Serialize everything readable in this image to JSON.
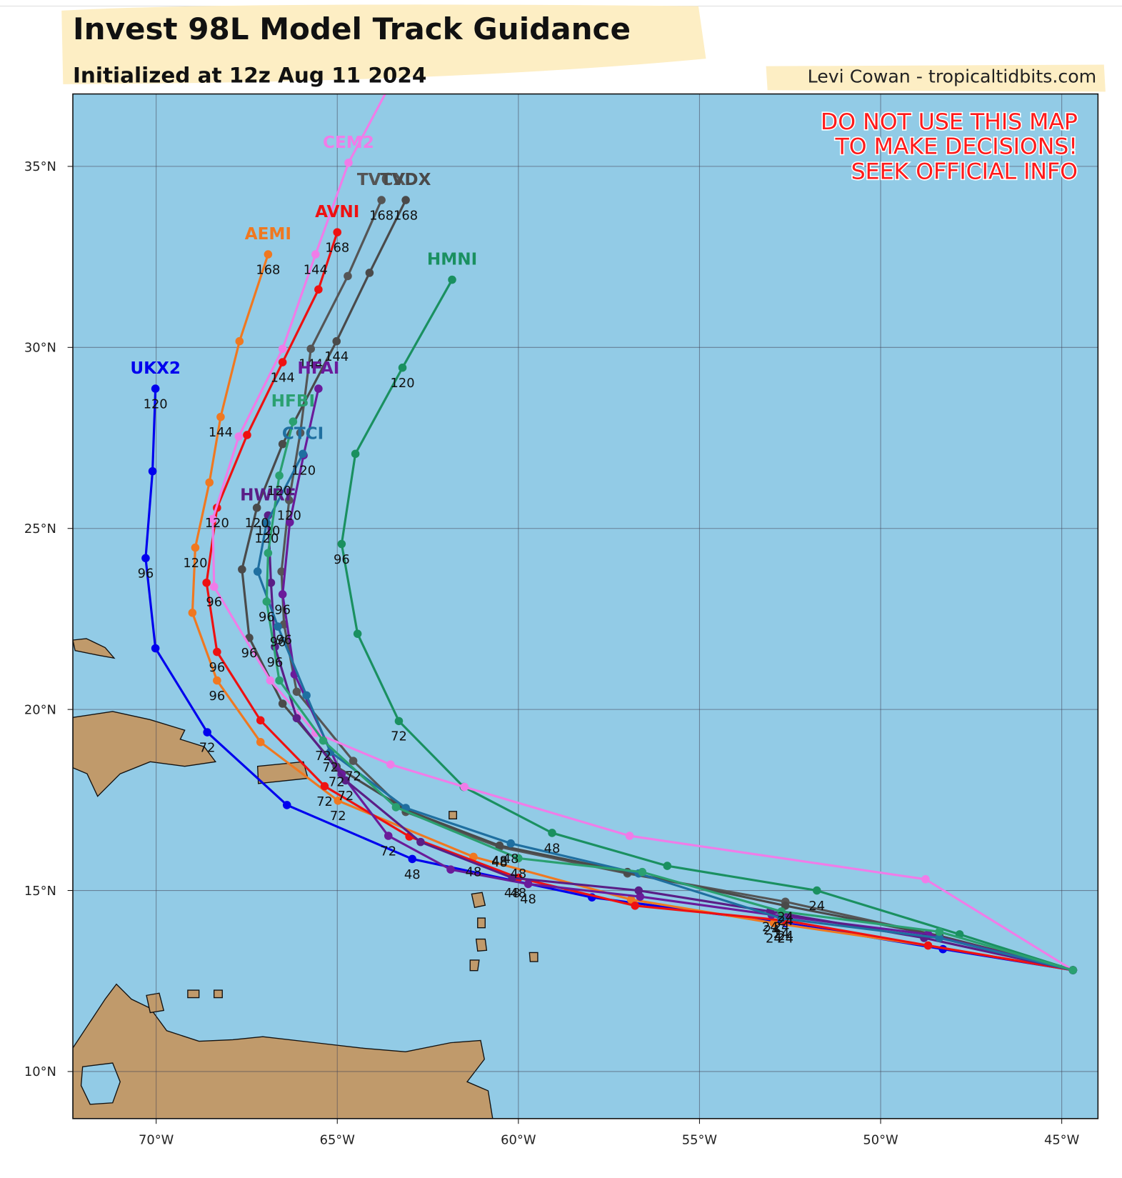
{
  "chart_data": {
    "type": "track",
    "title": "Invest 98L Model Track Guidance",
    "subtitle": "Initialized at 12z Aug 11 2024",
    "credit": "Levi Cowan - tropicaltidbits.com",
    "warning": [
      "DO NOT USE THIS MAP",
      "TO MAKE DECISIONS!",
      "SEEK OFFICIAL INFO"
    ],
    "xlim": [
      -72.3,
      -44.0
    ],
    "ylim": [
      8.7,
      37.0
    ],
    "xticks": [
      {
        "value": -70,
        "label": "70°W"
      },
      {
        "value": -65,
        "label": "65°W"
      },
      {
        "value": -60,
        "label": "60°W"
      },
      {
        "value": -55,
        "label": "55°W"
      },
      {
        "value": -50,
        "label": "50°W"
      },
      {
        "value": -45,
        "label": "45°W"
      }
    ],
    "yticks": [
      {
        "value": 10,
        "label": "10°N"
      },
      {
        "value": 15,
        "label": "15°N"
      },
      {
        "value": 20,
        "label": "20°N"
      },
      {
        "value": 25,
        "label": "25°N"
      },
      {
        "value": 30,
        "label": "30°N"
      },
      {
        "value": 35,
        "label": "35°N"
      }
    ],
    "grid": true,
    "series": [
      {
        "name": "UKX2",
        "color": "#0000ee",
        "x": [
          -44.69,
          -48.28,
          -52.63,
          -57.97,
          -62.93,
          -66.39,
          -68.59,
          -70.02,
          -70.29,
          -70.1,
          -70.02
        ],
        "y": [
          12.8,
          13.38,
          14.1,
          14.81,
          15.87,
          17.36,
          19.37,
          21.69,
          24.18,
          26.58,
          28.86
        ],
        "labels": [
          null,
          null,
          24,
          null,
          48,
          null,
          72,
          null,
          96,
          null,
          120
        ]
      },
      {
        "name": "AEMI",
        "color": "#f07820",
        "x": [
          -44.69,
          -48.69,
          -52.95,
          -56.89,
          -61.24,
          -64.98,
          -67.12,
          -68.32,
          -69.0,
          -68.92,
          -68.53,
          -68.22,
          -67.7,
          -66.91
        ],
        "y": [
          12.8,
          13.48,
          14.1,
          14.75,
          15.93,
          17.48,
          19.1,
          20.8,
          22.67,
          24.47,
          26.27,
          28.08,
          30.17,
          32.57
        ],
        "labels": [
          null,
          null,
          24,
          null,
          48,
          72,
          null,
          96,
          null,
          120,
          null,
          144,
          null,
          168
        ]
      },
      {
        "name": "AVNI",
        "color": "#ee1111",
        "x": [
          -44.69,
          -48.69,
          -52.63,
          -56.78,
          -60.0,
          -63.01,
          -65.35,
          -67.12,
          -68.32,
          -68.61,
          -68.32,
          -67.49,
          -66.51,
          -65.52,
          -65.0
        ],
        "y": [
          12.8,
          13.48,
          14.17,
          14.58,
          15.35,
          16.49,
          17.88,
          19.7,
          21.59,
          23.5,
          25.57,
          27.58,
          29.59,
          31.6,
          33.18
        ],
        "labels": [
          null,
          null,
          24,
          null,
          48,
          null,
          72,
          null,
          96,
          null,
          120,
          null,
          144,
          null,
          168
        ]
      },
      {
        "name": "TVCX",
        "color": "#555555",
        "x": [
          -44.69,
          -48.38,
          -52.63,
          -56.99,
          -60.52,
          -63.11,
          -64.56,
          -66.12,
          -66.47,
          -66.54,
          -66.33,
          -66.02,
          -65.73,
          -64.71,
          -63.78
        ],
        "y": [
          12.8,
          13.75,
          14.69,
          15.47,
          16.2,
          17.17,
          18.58,
          20.49,
          22.35,
          23.81,
          25.78,
          27.64,
          29.96,
          31.97,
          34.07
        ],
        "labels": [
          null,
          null,
          24,
          null,
          48,
          null,
          72,
          null,
          96,
          null,
          120,
          null,
          144,
          null,
          168
        ]
      },
      {
        "name": "TVDX",
        "color": "#4a4a4a",
        "x": [
          -44.69,
          -48.38,
          -52.63,
          -56.99,
          -60.52,
          -63.11,
          -65.02,
          -66.51,
          -67.43,
          -67.63,
          -67.22,
          -66.51,
          -65.02,
          -64.11,
          -63.11
        ],
        "y": [
          12.8,
          13.75,
          14.58,
          15.51,
          16.24,
          17.23,
          18.42,
          20.16,
          21.98,
          23.87,
          25.57,
          27.33,
          30.17,
          32.06,
          34.07
        ],
        "labels": [
          null,
          null,
          24,
          null,
          48,
          null,
          72,
          null,
          96,
          null,
          120,
          null,
          144,
          null,
          168
        ]
      },
      {
        "name": "HMNI",
        "color": "#1a9060",
        "x": [
          -44.69,
          -47.82,
          -51.76,
          -55.89,
          -59.07,
          -61.51,
          -63.3,
          -64.44,
          -64.88,
          -64.5,
          -63.2,
          -61.83
        ],
        "y": [
          12.8,
          13.79,
          15.0,
          15.68,
          16.59,
          17.86,
          19.68,
          22.09,
          24.57,
          27.06,
          29.44,
          31.87
        ],
        "labels": [
          null,
          null,
          24,
          null,
          48,
          null,
          72,
          null,
          96,
          null,
          120,
          null
        ]
      },
      {
        "name": "CEM2",
        "color": "#f07ce8",
        "x": [
          -44.69,
          -48.76,
          -56.93,
          -61.49,
          -63.53,
          -65.6,
          -66.85,
          -68.4,
          -68.44,
          -67.72,
          -66.51,
          -65.6,
          -64.69,
          -63.62
        ],
        "y": [
          12.8,
          15.31,
          16.51,
          17.86,
          18.48,
          19.35,
          20.8,
          23.39,
          25.26,
          27.54,
          29.96,
          32.57,
          35.1,
          37.11
        ],
        "labels": [
          null,
          null,
          null,
          null,
          null,
          null,
          null,
          96,
          null,
          null,
          null,
          144,
          null,
          null
        ]
      },
      {
        "name": "HFAI",
        "color": "#6a1b9a",
        "x": [
          -44.69,
          -48.69,
          -53.01,
          -56.64,
          -59.73,
          -61.87,
          -63.59,
          -64.88,
          -66.18,
          -66.51,
          -66.31,
          -65.93,
          -65.52
        ],
        "y": [
          12.8,
          13.79,
          14.33,
          14.83,
          15.18,
          15.58,
          16.51,
          18.21,
          20.97,
          23.18,
          25.17,
          27.02,
          28.86
        ],
        "labels": [
          null,
          null,
          24,
          null,
          48,
          null,
          72,
          null,
          null,
          96,
          null,
          120,
          null
        ]
      },
      {
        "name": "HWRF",
        "color": "#5a1e86",
        "x": [
          -44.69,
          -48.8,
          -53.05,
          -56.68,
          -60.17,
          -62.7,
          -64.77,
          -66.12,
          -66.72,
          -66.83,
          -66.91
        ],
        "y": [
          12.8,
          13.69,
          14.42,
          15.0,
          15.35,
          16.34,
          18.04,
          19.76,
          21.73,
          23.5,
          25.36
        ],
        "labels": [
          null,
          null,
          24,
          null,
          48,
          null,
          72,
          null,
          96,
          null,
          120
        ]
      },
      {
        "name": "CTCI",
        "color": "#1f6fa0",
        "x": [
          -44.69,
          -48.38,
          -52.74,
          -56.68,
          -60.21,
          -63.11,
          -65.19,
          -65.85,
          -66.64,
          -67.2,
          -66.95,
          -65.95
        ],
        "y": [
          12.8,
          13.69,
          14.23,
          15.47,
          16.3,
          17.28,
          18.83,
          20.39,
          22.29,
          23.81,
          25.15,
          27.06
        ],
        "labels": [
          null,
          null,
          24,
          null,
          48,
          null,
          72,
          null,
          96,
          null,
          120,
          null
        ]
      },
      {
        "name": "HFBI",
        "color": "#2aa070",
        "x": [
          -44.69,
          -48.38,
          -52.74,
          -56.58,
          -60.0,
          -63.38,
          -65.39,
          -66.6,
          -66.95,
          -66.91,
          -66.6,
          -66.22
        ],
        "y": [
          12.8,
          13.86,
          14.42,
          15.51,
          15.89,
          17.3,
          19.14,
          20.8,
          22.98,
          24.32,
          26.46,
          27.95
        ],
        "labels": [
          null,
          null,
          24,
          null,
          48,
          null,
          72,
          null,
          96,
          null,
          120,
          null
        ]
      }
    ]
  }
}
